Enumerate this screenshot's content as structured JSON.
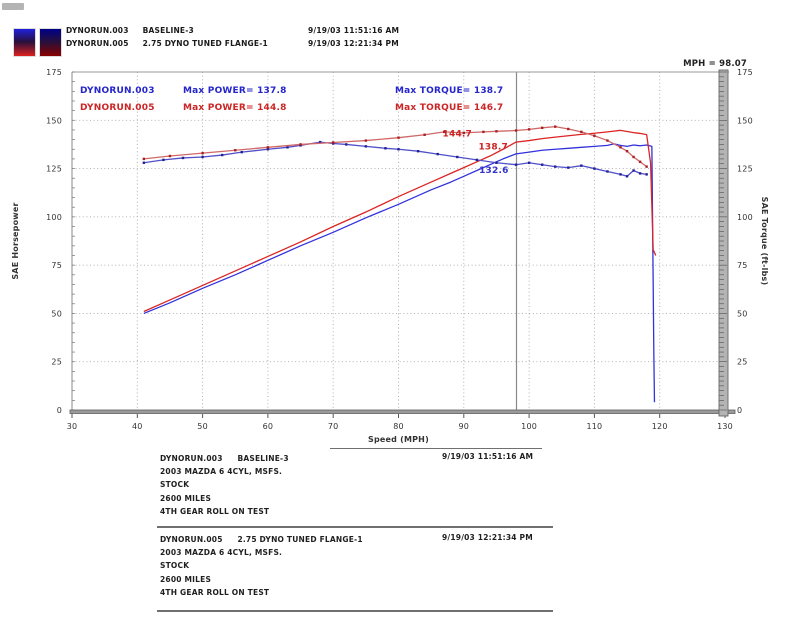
{
  "header": {
    "runs": [
      {
        "name": "DYNORUN.003",
        "desc": "BASELINE-3",
        "timestamp": "9/19/03 11:51:16 AM",
        "chip_top": "#2020dd",
        "chip_bottom": "#dd2020"
      },
      {
        "name": "DYNORUN.005",
        "desc": "2.75 DYNO TUNED FLANGE-1",
        "timestamp": "9/19/03 12:21:34 PM",
        "chip_top": "#000088",
        "chip_bottom": "#880000"
      }
    ]
  },
  "chart_data": {
    "type": "line",
    "title": "",
    "xlabel": "Speed (MPH)",
    "ylabel_left": "SAE Horsepower",
    "ylabel_right": "SAE Torque (ft-lbs)",
    "xlim": [
      30,
      130
    ],
    "ylim": [
      0,
      175
    ],
    "xticks": [
      30,
      40,
      50,
      60,
      70,
      80,
      90,
      100,
      110,
      120,
      130
    ],
    "yticks": [
      0,
      25,
      50,
      75,
      100,
      125,
      150,
      175
    ],
    "grid": "dotted",
    "legend_position": "top-left-inside",
    "cursor": {
      "mph": 98.07,
      "readout": "MPH = 98.07"
    },
    "annotations": [
      {
        "run": "DYNORUN.003",
        "max_power_text": "Max POWER= 137.8",
        "max_torque_text": "Max TORQUE= 138.7",
        "color": "#2525cc"
      },
      {
        "run": "DYNORUN.005",
        "max_power_text": "Max POWER= 144.8",
        "max_torque_text": "Max TORQUE= 146.7",
        "color": "#cc2525"
      }
    ],
    "point_labels": [
      {
        "text": "144.7",
        "mph": 89.0,
        "value": 143.2,
        "color": "#cc2525"
      },
      {
        "text": "138.7",
        "mph": 94.5,
        "value": 136.4,
        "color": "#cc2525"
      },
      {
        "text": "132.6",
        "mph": 94.6,
        "value": 124.3,
        "color": "#3333cc"
      }
    ],
    "series": [
      {
        "name": "DYNORUN.003 horsepower",
        "color": "#3232dc",
        "markers": false,
        "marker_color": "#3232dc",
        "points": [
          [
            41,
            50
          ],
          [
            45,
            55.5
          ],
          [
            50,
            63
          ],
          [
            55,
            70
          ],
          [
            60,
            77.5
          ],
          [
            65,
            85
          ],
          [
            70,
            92
          ],
          [
            75,
            99.5
          ],
          [
            80,
            106.5
          ],
          [
            85,
            114
          ],
          [
            88,
            118
          ],
          [
            90,
            121
          ],
          [
            92,
            124
          ],
          [
            94,
            127
          ],
          [
            96,
            130
          ],
          [
            98,
            132.6
          ],
          [
            100,
            133.5
          ],
          [
            102,
            134.5
          ],
          [
            104,
            135
          ],
          [
            106,
            135.5
          ],
          [
            108,
            136
          ],
          [
            110,
            136.5
          ],
          [
            112,
            137
          ],
          [
            113,
            137.8
          ],
          [
            114,
            137
          ],
          [
            115,
            136.5
          ],
          [
            116,
            137.2
          ],
          [
            117,
            136.8
          ],
          [
            118,
            137.2
          ],
          [
            118.8,
            136.5
          ],
          [
            119.1,
            30
          ],
          [
            119.2,
            4
          ]
        ]
      },
      {
        "name": "DYNORUN.005 horsepower",
        "color": "#dc2424",
        "markers": false,
        "marker_color": "#dc2424",
        "points": [
          [
            41,
            51
          ],
          [
            45,
            57
          ],
          [
            50,
            64.5
          ],
          [
            55,
            72
          ],
          [
            60,
            79.5
          ],
          [
            65,
            87
          ],
          [
            70,
            95
          ],
          [
            75,
            102.5
          ],
          [
            80,
            110.5
          ],
          [
            85,
            118
          ],
          [
            88,
            122.5
          ],
          [
            90,
            125.5
          ],
          [
            92,
            128.5
          ],
          [
            94,
            131.5
          ],
          [
            96,
            135
          ],
          [
            98,
            138.7
          ],
          [
            100,
            139.5
          ],
          [
            102,
            140.5
          ],
          [
            104,
            141.3
          ],
          [
            106,
            142
          ],
          [
            108,
            142.7
          ],
          [
            110,
            143.3
          ],
          [
            112,
            144
          ],
          [
            113,
            144.4
          ],
          [
            114,
            144.8
          ],
          [
            115,
            144.2
          ],
          [
            116,
            143.6
          ],
          [
            117,
            143.2
          ],
          [
            118,
            142.6
          ],
          [
            118.6,
            128
          ],
          [
            119,
            83
          ],
          [
            119.4,
            80
          ]
        ]
      },
      {
        "name": "DYNORUN.003 torque",
        "color": "#5050c8",
        "markers": true,
        "marker_color": "#202098",
        "points": [
          [
            41,
            128
          ],
          [
            44,
            129.5
          ],
          [
            47,
            130.5
          ],
          [
            50,
            131
          ],
          [
            53,
            132
          ],
          [
            56,
            133.5
          ],
          [
            60,
            135
          ],
          [
            63,
            136
          ],
          [
            65,
            137
          ],
          [
            68,
            138.7
          ],
          [
            70,
            138
          ],
          [
            72,
            137.5
          ],
          [
            75,
            136.5
          ],
          [
            78,
            135.5
          ],
          [
            80,
            135
          ],
          [
            83,
            134
          ],
          [
            86,
            132.5
          ],
          [
            89,
            131
          ],
          [
            92,
            129.5
          ],
          [
            95,
            128
          ],
          [
            98,
            127
          ],
          [
            100,
            128
          ],
          [
            102,
            127
          ],
          [
            104,
            126
          ],
          [
            106,
            125.5
          ],
          [
            108,
            126.5
          ],
          [
            110,
            125
          ],
          [
            112,
            123.5
          ],
          [
            114,
            122
          ],
          [
            115,
            121
          ],
          [
            116,
            124
          ],
          [
            117,
            122.5
          ],
          [
            118,
            122
          ]
        ]
      },
      {
        "name": "DYNORUN.005 torque",
        "color": "#d06868",
        "markers": true,
        "marker_color": "#aa2020",
        "points": [
          [
            41,
            130
          ],
          [
            45,
            131.5
          ],
          [
            50,
            133
          ],
          [
            55,
            134.5
          ],
          [
            60,
            136
          ],
          [
            65,
            137.5
          ],
          [
            70,
            138.5
          ],
          [
            75,
            139.5
          ],
          [
            80,
            141
          ],
          [
            84,
            142.5
          ],
          [
            87,
            144
          ],
          [
            90,
            143.5
          ],
          [
            93,
            144
          ],
          [
            95,
            144.3
          ],
          [
            98,
            144.7
          ],
          [
            100,
            145.3
          ],
          [
            102,
            146.1
          ],
          [
            104,
            146.7
          ],
          [
            106,
            145.5
          ],
          [
            108,
            144
          ],
          [
            110,
            142
          ],
          [
            112,
            139.5
          ],
          [
            114,
            136
          ],
          [
            115,
            134
          ],
          [
            116,
            131
          ],
          [
            117,
            128.5
          ],
          [
            118,
            126
          ]
        ]
      }
    ]
  },
  "footer": {
    "blocks": [
      {
        "line1_name": "DYNORUN.003",
        "line1_desc": "BASELINE-3",
        "timestamp": "9/19/03 11:51:16 AM",
        "lines": [
          "2003 MAZDA 6 4CYL, MSFS.",
          "STOCK",
          "2600 MILES",
          "4TH GEAR ROLL ON TEST"
        ]
      },
      {
        "line1_name": "DYNORUN.005",
        "line1_desc": "2.75 DYNO TUNED FLANGE-1",
        "timestamp": "9/19/03 12:21:34 PM",
        "lines": [
          "2003 MAZDA 6 4CYL, MSFS.",
          "STOCK",
          "2600 MILES",
          "4TH GEAR ROLL ON TEST"
        ]
      }
    ]
  }
}
